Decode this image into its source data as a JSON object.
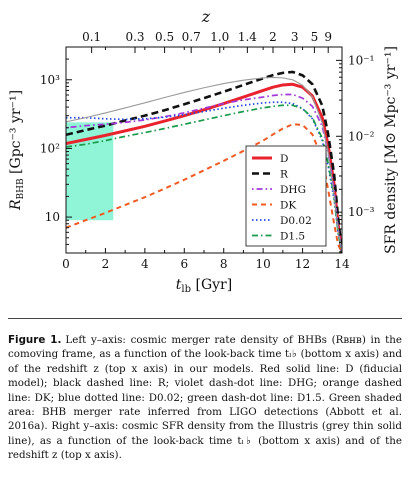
{
  "chart_data": {
    "type": "line",
    "x_axis": {
      "label_var": "t",
      "label_sub": "lb",
      "label_unit": " [Gyr]",
      "ticks": [
        0,
        2,
        4,
        6,
        8,
        10,
        12,
        14
      ],
      "range": [
        0,
        14
      ]
    },
    "top_axis": {
      "label": "z",
      "ticks": [
        {
          "z": "0.1",
          "t": 1.3
        },
        {
          "z": "0.3",
          "t": 3.5
        },
        {
          "z": "0.5",
          "t": 5.0
        },
        {
          "z": "0.7",
          "t": 6.35
        },
        {
          "z": "1.0",
          "t": 7.8
        },
        {
          "z": "1.4",
          "t": 9.2
        },
        {
          "z": "2",
          "t": 10.5
        },
        {
          "z": "3",
          "t": 11.6
        },
        {
          "z": "5",
          "t": 12.6
        },
        {
          "z": "9",
          "t": 13.3
        }
      ]
    },
    "left_axis": {
      "label_var": "R",
      "label_sub": "BHB",
      "label_unit": " [Gpc⁻³ yr⁻¹]",
      "scale": "log",
      "range": [
        3,
        3000
      ],
      "ticks": [
        {
          "v": 10,
          "label": "10"
        },
        {
          "v": 100,
          "label": "10²"
        },
        {
          "v": 1000,
          "label": "10³"
        }
      ]
    },
    "right_axis": {
      "label": "SFR density [M⊙ Mpc⁻³ yr⁻¹]",
      "scale": "log",
      "range": [
        0.00029,
        0.15
      ],
      "ticks": [
        {
          "v": 0.001,
          "label": "10⁻³"
        },
        {
          "v": 0.01,
          "label": "10⁻²"
        },
        {
          "v": 0.1,
          "label": "10⁻¹"
        }
      ]
    },
    "green_band": {
      "x": [
        0,
        2.4
      ],
      "y": [
        9,
        240
      ]
    },
    "series": [
      {
        "name": "D",
        "color": "#e8232e",
        "dash": "none",
        "width": 3,
        "axis": "left",
        "points": [
          [
            0,
            118
          ],
          [
            1,
            135
          ],
          [
            2,
            155
          ],
          [
            3,
            180
          ],
          [
            4,
            210
          ],
          [
            5,
            250
          ],
          [
            6,
            300
          ],
          [
            7,
            365
          ],
          [
            8,
            450
          ],
          [
            9,
            560
          ],
          [
            10,
            700
          ],
          [
            10.5,
            780
          ],
          [
            11,
            840
          ],
          [
            11.5,
            860
          ],
          [
            12,
            780
          ],
          [
            12.5,
            580
          ],
          [
            13,
            280
          ],
          [
            13.3,
            110
          ],
          [
            13.6,
            30
          ],
          [
            13.8,
            8
          ],
          [
            14,
            3
          ]
        ]
      },
      {
        "name": "R",
        "color": "#111111",
        "dash": "7,4",
        "width": 2.6,
        "axis": "left",
        "points": [
          [
            0,
            158
          ],
          [
            1,
            185
          ],
          [
            2,
            215
          ],
          [
            3,
            255
          ],
          [
            4,
            300
          ],
          [
            5,
            360
          ],
          [
            6,
            440
          ],
          [
            7,
            540
          ],
          [
            8,
            670
          ],
          [
            9,
            840
          ],
          [
            10,
            1050
          ],
          [
            10.5,
            1170
          ],
          [
            11,
            1260
          ],
          [
            11.5,
            1300
          ],
          [
            12,
            1160
          ],
          [
            12.5,
            860
          ],
          [
            13,
            420
          ],
          [
            13.3,
            160
          ],
          [
            13.6,
            42
          ],
          [
            13.8,
            10
          ],
          [
            14,
            3
          ]
        ]
      },
      {
        "name": "DHG",
        "color": "#a23ad9",
        "dash": "1.6,3,6,3",
        "width": 1.7,
        "axis": "left",
        "points": [
          [
            0,
            200
          ],
          [
            1,
            215
          ],
          [
            2,
            225
          ],
          [
            3,
            240
          ],
          [
            4,
            260
          ],
          [
            5,
            290
          ],
          [
            6,
            330
          ],
          [
            7,
            385
          ],
          [
            8,
            450
          ],
          [
            9,
            510
          ],
          [
            10,
            560
          ],
          [
            10.5,
            590
          ],
          [
            11,
            610
          ],
          [
            11.5,
            610
          ],
          [
            12,
            540
          ],
          [
            12.5,
            410
          ],
          [
            13,
            210
          ],
          [
            13.3,
            85
          ],
          [
            13.6,
            25
          ],
          [
            13.8,
            7
          ],
          [
            14,
            3
          ]
        ]
      },
      {
        "name": "DK",
        "color": "#f05a22",
        "dash": "5,4",
        "width": 2,
        "axis": "left",
        "points": [
          [
            0,
            7
          ],
          [
            1,
            9
          ],
          [
            2,
            11.5
          ],
          [
            3,
            15
          ],
          [
            4,
            19.5
          ],
          [
            5,
            26
          ],
          [
            6,
            35
          ],
          [
            7,
            48
          ],
          [
            8,
            66
          ],
          [
            9,
            92
          ],
          [
            10,
            130
          ],
          [
            10.5,
            160
          ],
          [
            11,
            195
          ],
          [
            11.5,
            225
          ],
          [
            12,
            220
          ],
          [
            12.5,
            160
          ],
          [
            13,
            70
          ],
          [
            13.3,
            25
          ],
          [
            13.6,
            8
          ],
          [
            13.8,
            4
          ],
          [
            14,
            3
          ]
        ]
      },
      {
        "name": "D0.02",
        "color": "#2447e2",
        "dash": "1.5,2.5",
        "width": 1.7,
        "axis": "left",
        "points": [
          [
            0,
            280
          ],
          [
            1,
            280
          ],
          [
            2,
            270
          ],
          [
            3,
            265
          ],
          [
            4,
            270
          ],
          [
            5,
            285
          ],
          [
            6,
            310
          ],
          [
            7,
            345
          ],
          [
            8,
            385
          ],
          [
            9,
            425
          ],
          [
            10,
            460
          ],
          [
            10.5,
            470
          ],
          [
            11,
            470
          ],
          [
            11.5,
            450
          ],
          [
            12,
            380
          ],
          [
            12.5,
            270
          ],
          [
            13,
            130
          ],
          [
            13.3,
            55
          ],
          [
            13.6,
            18
          ],
          [
            13.8,
            6
          ],
          [
            14,
            3
          ]
        ]
      },
      {
        "name": "D1.5",
        "color": "#1a9a4a",
        "dash": "6,3,1.5,3",
        "width": 1.7,
        "axis": "left",
        "points": [
          [
            0,
            105
          ],
          [
            1,
            115
          ],
          [
            2,
            130
          ],
          [
            3,
            150
          ],
          [
            4,
            170
          ],
          [
            5,
            195
          ],
          [
            6,
            225
          ],
          [
            7,
            260
          ],
          [
            8,
            300
          ],
          [
            9,
            345
          ],
          [
            10,
            390
          ],
          [
            10.5,
            410
          ],
          [
            11,
            425
          ],
          [
            11.5,
            425
          ],
          [
            12,
            380
          ],
          [
            12.5,
            280
          ],
          [
            13,
            140
          ],
          [
            13.3,
            60
          ],
          [
            13.6,
            20
          ],
          [
            13.8,
            6
          ],
          [
            14,
            3
          ]
        ]
      },
      {
        "name": "",
        "color": "#9a9a9a",
        "dash": "none",
        "width": 1.1,
        "axis": "right",
        "points": [
          [
            0,
            0.0155
          ],
          [
            1,
            0.0176
          ],
          [
            2,
            0.0203
          ],
          [
            3,
            0.0236
          ],
          [
            4,
            0.0276
          ],
          [
            5,
            0.0324
          ],
          [
            6,
            0.0378
          ],
          [
            7,
            0.0436
          ],
          [
            8,
            0.0495
          ],
          [
            9,
            0.0548
          ],
          [
            10,
            0.0588
          ],
          [
            10.5,
            0.0595
          ],
          [
            11,
            0.0588
          ],
          [
            11.5,
            0.0555
          ],
          [
            12,
            0.047
          ],
          [
            12.5,
            0.033
          ],
          [
            13,
            0.015
          ],
          [
            13.3,
            0.006
          ],
          [
            13.6,
            0.0017
          ],
          [
            13.8,
            0.0006
          ],
          [
            14,
            0.0003
          ]
        ]
      }
    ]
  },
  "caption": {
    "label": "Figure 1.",
    "text": "Left y–axis: cosmic merger rate density of BHBs (Rʙʜʙ) in the comoving frame, as a function of the look-back time tₗ♭ (bottom x axis) and of the redshift z (top x axis) in our models. Red solid line: D (fiducial model); black dashed line: R; violet dash-dot line: DHG; orange dashed line: DK; blue dotted line: D0.02; green dash-dot line: D1.5. Green shaded area: BHB merger rate inferred from LIGO detections (Abbott et al. 2016a). Right y–axis: cosmic SFR density from the Illustris (grey thin solid line), as a function of the look-back time tₗ♭ (bottom x axis) and of the redshift z (top x axis)."
  }
}
